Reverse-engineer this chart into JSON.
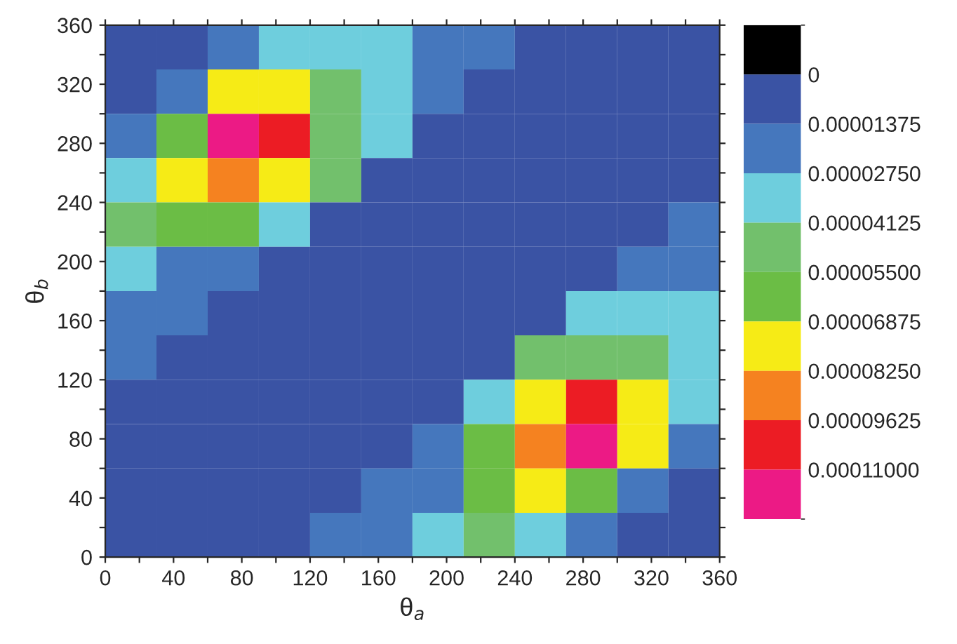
{
  "chart_data": {
    "type": "heatmap",
    "xlabel": "θ$_{a}$",
    "ylabel": "θ$_{b}$",
    "xlim": [
      0,
      360
    ],
    "ylim": [
      0,
      360
    ],
    "xticks": [
      0,
      {
        "value": 20,
        "label": null
      },
      40,
      {
        "value": 60,
        "label": null
      },
      80,
      {
        "value": 100,
        "label": null
      },
      120,
      {
        "value": 140,
        "label": null
      },
      160,
      {
        "value": 180,
        "label": null
      },
      200,
      {
        "value": 220,
        "label": null
      },
      240,
      {
        "value": 260,
        "label": null
      },
      280,
      {
        "value": 300,
        "label": null
      },
      320,
      {
        "value": 340,
        "label": null
      },
      360
    ],
    "yticks": [
      0,
      {
        "value": 20,
        "label": null
      },
      40,
      {
        "value": 60,
        "label": null
      },
      80,
      {
        "value": 100,
        "label": null
      },
      120,
      {
        "value": 140,
        "label": null
      },
      160,
      {
        "value": 180,
        "label": null
      },
      200,
      {
        "value": 220,
        "label": null
      },
      240,
      {
        "value": 260,
        "label": null
      },
      280,
      {
        "value": 300,
        "label": null
      },
      320,
      {
        "value": 340,
        "label": null
      },
      360
    ],
    "clim": [
      0.00012375,
      -1.375e-05
    ],
    "cticks": [
      0,
      {
        "value": 1.375e-05,
        "label": "0.00001375"
      },
      {
        "value": 2.75e-05,
        "label": "0.00002750"
      },
      {
        "value": 4.125e-05,
        "label": "0.00004125"
      },
      {
        "value": 5.5e-05,
        "label": "0.00005500"
      },
      {
        "value": 6.875e-05,
        "label": "0.00006875"
      },
      {
        "value": 8.25e-05,
        "label": "0.00008250"
      },
      {
        "value": 9.625e-05,
        "label": "0.00009625"
      },
      {
        "value": 0.00011,
        "label": "0.00011000"
      }
    ],
    "colors": [
      "#000000",
      "#3a53a4",
      "#4577bd",
      "#6ecedd",
      "#72c06c",
      "#6bbd45",
      "#f6eb16",
      "#f58220",
      "#ec1c24",
      "#ec1a85"
    ],
    "cells": [
      [
        7e-06,
        7e-06,
        2e-05,
        3.5e-05,
        3.5e-05,
        3.5e-05,
        2e-05,
        2e-05,
        7e-06,
        7e-06,
        7e-06,
        7e-06
      ],
      [
        7e-06,
        2e-05,
        7.5e-05,
        7.5e-05,
        5e-05,
        3.5e-05,
        2e-05,
        7e-06,
        7e-06,
        7e-06,
        7e-06,
        7e-06
      ],
      [
        2e-05,
        6e-05,
        0.000115,
        0.0001,
        5e-05,
        3.5e-05,
        7e-06,
        7e-06,
        7e-06,
        7e-06,
        7e-06,
        7e-06
      ],
      [
        3.5e-05,
        7.5e-05,
        9e-05,
        7.5e-05,
        5e-05,
        7e-06,
        7e-06,
        7e-06,
        7e-06,
        7e-06,
        7e-06,
        7e-06
      ],
      [
        5e-05,
        6e-05,
        6e-05,
        3.5e-05,
        7e-06,
        7e-06,
        7e-06,
        7e-06,
        7e-06,
        7e-06,
        7e-06,
        2e-05
      ],
      [
        3.5e-05,
        2e-05,
        2e-05,
        7e-06,
        7e-06,
        7e-06,
        7e-06,
        7e-06,
        7e-06,
        7e-06,
        2e-05,
        2e-05
      ],
      [
        2e-05,
        2e-05,
        7e-06,
        7e-06,
        7e-06,
        7e-06,
        7e-06,
        7e-06,
        7e-06,
        3.5e-05,
        3.5e-05,
        3.5e-05
      ],
      [
        2e-05,
        7e-06,
        7e-06,
        7e-06,
        7e-06,
        7e-06,
        7e-06,
        7e-06,
        5e-05,
        5e-05,
        5e-05,
        3.5e-05
      ],
      [
        7e-06,
        7e-06,
        7e-06,
        7e-06,
        7e-06,
        7e-06,
        7e-06,
        3.5e-05,
        7.5e-05,
        0.0001,
        7.5e-05,
        3.5e-05
      ],
      [
        7e-06,
        7e-06,
        7e-06,
        7e-06,
        7e-06,
        7e-06,
        2e-05,
        6e-05,
        9e-05,
        0.000115,
        7.5e-05,
        2e-05
      ],
      [
        7e-06,
        7e-06,
        7e-06,
        7e-06,
        7e-06,
        2e-05,
        2e-05,
        6e-05,
        7.5e-05,
        6e-05,
        2e-05,
        7e-06
      ],
      [
        7e-06,
        7e-06,
        7e-06,
        7e-06,
        2e-05,
        2e-05,
        3.5e-05,
        5e-05,
        3.5e-05,
        2e-05,
        7e-06,
        7e-06
      ]
    ]
  }
}
